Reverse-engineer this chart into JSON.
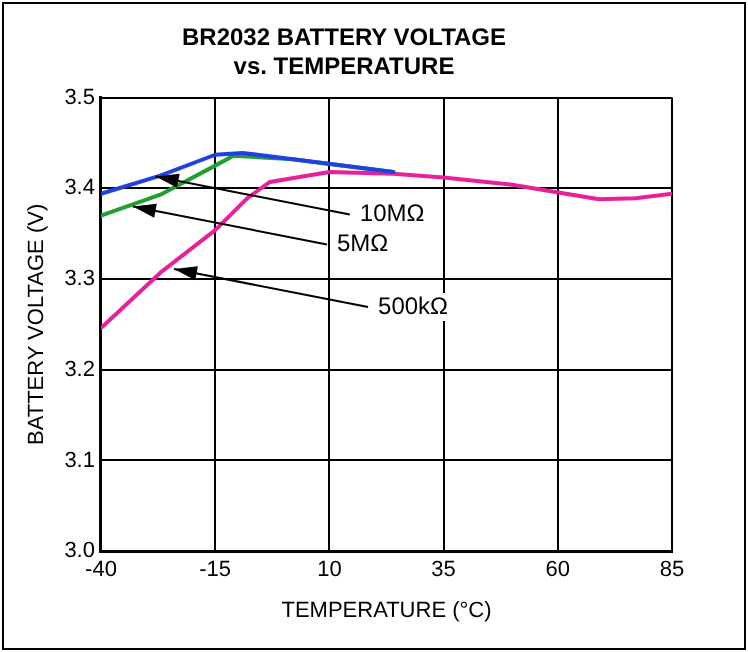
{
  "chart_data": {
    "type": "line",
    "title": [
      "BR2032 BATTERY VOLTAGE",
      "vs. TEMPERATURE"
    ],
    "xlabel": "TEMPERATURE (°C)",
    "ylabel": "BATTERY VOLTAGE (V)",
    "xlim": [
      -40,
      85
    ],
    "xticks": [
      -40,
      -15,
      10,
      35,
      60,
      85
    ],
    "ylim": [
      3.0,
      3.5
    ],
    "yticks": [
      {
        "value": 3.0,
        "label": "3.0"
      },
      3.1,
      3.2,
      3.3,
      3.4,
      3.5
    ],
    "grid": true,
    "legend": false,
    "marker": "none",
    "line_style": "solid",
    "series": [
      {
        "color": "#2040e0",
        "x": [
          -40,
          -27,
          -15,
          -9,
          2,
          24
        ],
        "values": [
          3.394,
          3.414,
          3.437,
          3.439,
          3.432,
          3.418
        ]
      },
      {
        "color": "#20a030",
        "x": [
          -40,
          -27,
          -15,
          -11,
          2,
          24
        ],
        "values": [
          3.37,
          3.393,
          3.425,
          3.436,
          3.432,
          3.418
        ]
      },
      {
        "color": "#e8209a",
        "x": [
          -40,
          -27,
          -15,
          -8,
          -3,
          10,
          24,
          35,
          50,
          69,
          77,
          85
        ],
        "values": [
          3.246,
          3.307,
          3.354,
          3.389,
          3.407,
          3.418,
          3.416,
          3.412,
          3.404,
          3.388,
          3.389,
          3.394
        ]
      }
    ],
    "annotations": [
      {
        "text": "10MΩ",
        "x": -28,
        "y": 3.413
      },
      {
        "text": "5MΩ",
        "x": -33,
        "y": 3.38
      },
      {
        "text": "500kΩ",
        "x": -24,
        "y": 3.311
      }
    ]
  }
}
